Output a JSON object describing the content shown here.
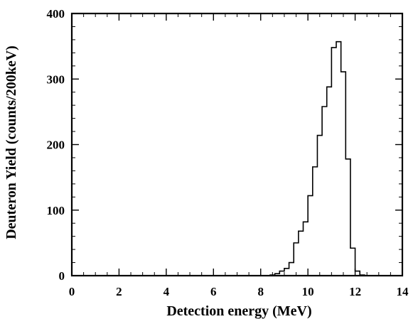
{
  "chart_data": {
    "type": "histogram",
    "title": "",
    "xlabel": "Detection energy (MeV)",
    "ylabel": "Deuteron Yield (counts/200keV)",
    "xlim": [
      0,
      14
    ],
    "ylim": [
      0,
      400
    ],
    "xticks": [
      0,
      2,
      4,
      6,
      8,
      10,
      12,
      14
    ],
    "yticks": [
      0,
      100,
      200,
      300,
      400
    ],
    "bin_width": 0.2,
    "grid": false,
    "legend": "none",
    "line_color": "#000000",
    "bins": [
      {
        "x": 8.4,
        "y": 1
      },
      {
        "x": 8.6,
        "y": 3
      },
      {
        "x": 8.8,
        "y": 7
      },
      {
        "x": 9.0,
        "y": 11
      },
      {
        "x": 9.2,
        "y": 20
      },
      {
        "x": 9.4,
        "y": 50
      },
      {
        "x": 9.6,
        "y": 68
      },
      {
        "x": 9.8,
        "y": 82
      },
      {
        "x": 10.0,
        "y": 122
      },
      {
        "x": 10.2,
        "y": 166
      },
      {
        "x": 10.4,
        "y": 214
      },
      {
        "x": 10.6,
        "y": 258
      },
      {
        "x": 10.8,
        "y": 288
      },
      {
        "x": 11.0,
        "y": 348
      },
      {
        "x": 11.2,
        "y": 357
      },
      {
        "x": 11.4,
        "y": 311
      },
      {
        "x": 11.6,
        "y": 178
      },
      {
        "x": 11.8,
        "y": 42
      },
      {
        "x": 12.0,
        "y": 7
      },
      {
        "x": 12.2,
        "y": 1
      }
    ]
  }
}
